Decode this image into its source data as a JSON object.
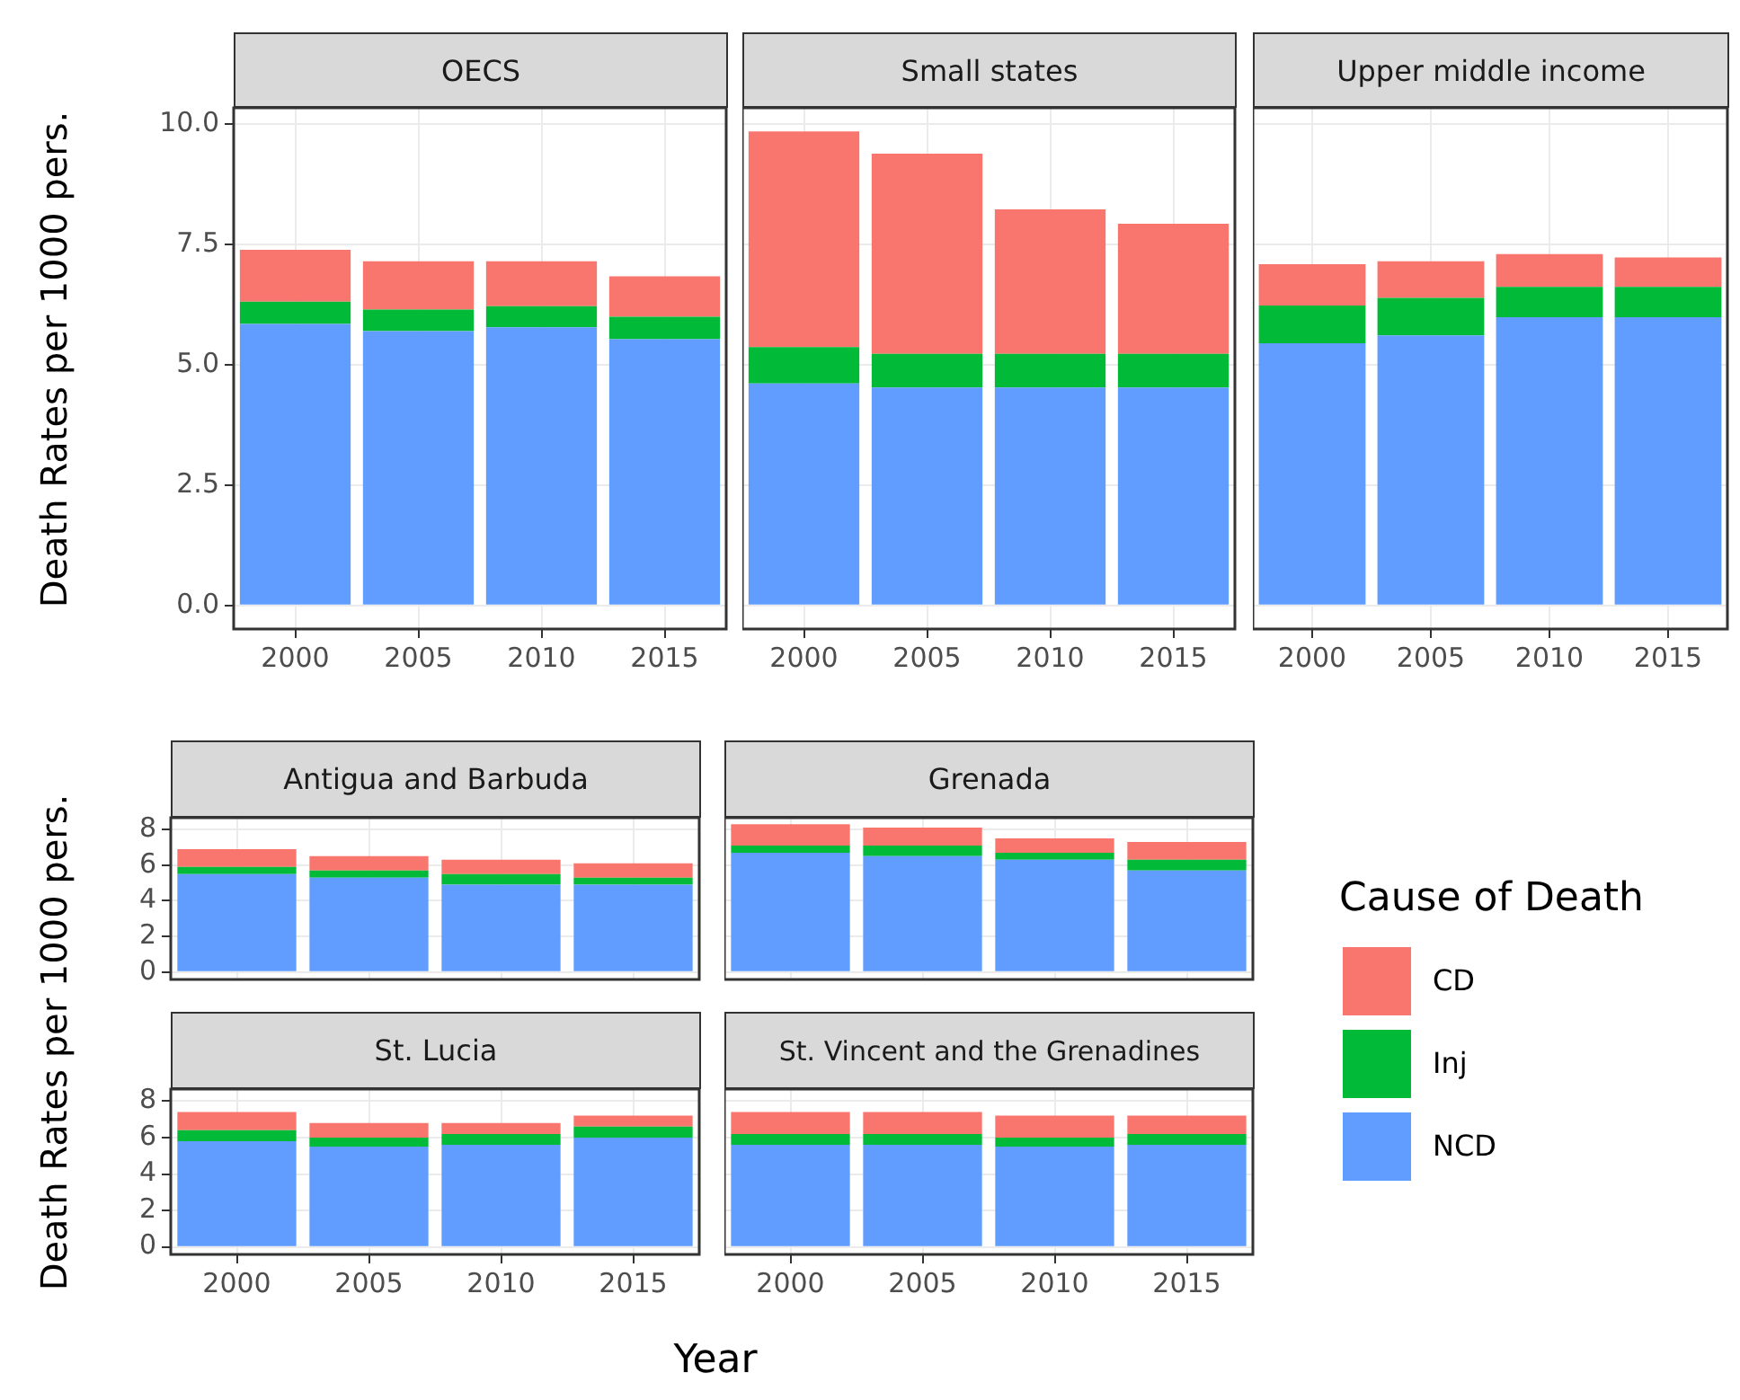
{
  "chart_data": [
    {
      "type": "bar",
      "title": "OECS",
      "ylabel": "Death Rates per 1000 pers.",
      "categories": [
        "2000",
        "2005",
        "2010",
        "2015"
      ],
      "stacked": true,
      "grid": true,
      "ylim": [
        -0.49,
        10.34
      ],
      "yticks": [
        {
          "value": 0,
          "label": "0.0"
        },
        2.5,
        {
          "value": 5,
          "label": "5.0"
        },
        7.5,
        {
          "value": 10,
          "label": "10.0"
        }
      ],
      "series": [
        {
          "color": "#619cff",
          "values": [
            5.85,
            5.7,
            5.78,
            5.53
          ]
        },
        {
          "color": "#00ba38",
          "values": [
            0.46,
            0.45,
            0.44,
            0.47
          ]
        },
        {
          "color": "#f8766d",
          "values": [
            1.08,
            1.0,
            0.93,
            0.84
          ]
        }
      ]
    },
    {
      "type": "bar",
      "title": "Small states",
      "categories": [
        "2000",
        "2005",
        "2010",
        "2015"
      ],
      "stacked": true,
      "grid": true,
      "tick_labels": "x",
      "ylim": [
        -0.49,
        10.34
      ],
      "yticks": [
        0,
        2.5,
        5,
        7.5,
        10
      ],
      "series": [
        {
          "color": "#619cff",
          "values": [
            4.61,
            4.53,
            4.53,
            4.53
          ]
        },
        {
          "color": "#00ba38",
          "values": [
            0.76,
            0.7,
            0.7,
            0.7
          ]
        },
        {
          "color": "#f8766d",
          "values": [
            4.48,
            4.16,
            3.0,
            2.7
          ]
        }
      ]
    },
    {
      "type": "bar",
      "title": "Upper middle income",
      "categories": [
        "2000",
        "2005",
        "2010",
        "2015"
      ],
      "stacked": true,
      "grid": true,
      "tick_labels": "x",
      "ylim": [
        -0.49,
        10.34
      ],
      "yticks": [
        0,
        2.5,
        5,
        7.5,
        10
      ],
      "series": [
        {
          "color": "#619cff",
          "values": [
            5.45,
            5.61,
            5.99,
            5.99
          ]
        },
        {
          "color": "#00ba38",
          "values": [
            0.78,
            0.78,
            0.63,
            0.63
          ]
        },
        {
          "color": "#f8766d",
          "values": [
            0.86,
            0.76,
            0.68,
            0.61
          ]
        }
      ]
    },
    {
      "type": "bar",
      "title": "Antigua and Barbuda",
      "ylabel": "Death Rates per 1000 pers.",
      "categories": [
        "2000",
        "2005",
        "2010",
        "2015"
      ],
      "stacked": true,
      "grid": true,
      "tick_labels": "y",
      "ylim": [
        -0.41,
        8.66
      ],
      "yticks": [
        0,
        2,
        4,
        6,
        8
      ],
      "series": [
        {
          "color": "#619cff",
          "values": [
            5.5,
            5.3,
            4.9,
            4.9
          ]
        },
        {
          "color": "#00ba38",
          "values": [
            0.4,
            0.4,
            0.6,
            0.4
          ]
        },
        {
          "color": "#f8766d",
          "values": [
            1.0,
            0.8,
            0.8,
            0.8
          ]
        }
      ]
    },
    {
      "type": "bar",
      "title": "Grenada",
      "legend": "right",
      "legend_title": "Cause of Death",
      "categories": [
        "2000",
        "2005",
        "2010",
        "2015"
      ],
      "stacked": true,
      "grid": true,
      "tick_labels": false,
      "ylim": [
        -0.41,
        8.66
      ],
      "yticks": [
        0,
        2,
        4,
        6,
        8
      ],
      "series": [
        {
          "name": "NCD",
          "color": "#619cff",
          "values": [
            6.7,
            6.5,
            6.3,
            5.7
          ]
        },
        {
          "name": "Inj",
          "color": "#00ba38",
          "values": [
            0.4,
            0.6,
            0.4,
            0.6
          ]
        },
        {
          "name": "CD",
          "color": "#f8766d",
          "values": [
            1.2,
            1.0,
            0.8,
            1.0
          ]
        }
      ]
    },
    {
      "type": "bar",
      "title": "St. Lucia",
      "xlabel": "Year",
      "categories": [
        "2000",
        "2005",
        "2010",
        "2015"
      ],
      "stacked": true,
      "grid": true,
      "ylim": [
        -0.41,
        8.66
      ],
      "yticks": [
        0,
        2,
        4,
        6,
        8
      ],
      "series": [
        {
          "color": "#619cff",
          "values": [
            5.8,
            5.5,
            5.6,
            6.0
          ]
        },
        {
          "color": "#00ba38",
          "values": [
            0.6,
            0.5,
            0.6,
            0.6
          ]
        },
        {
          "color": "#f8766d",
          "values": [
            1.0,
            0.8,
            0.6,
            0.6
          ]
        }
      ]
    },
    {
      "type": "bar",
      "title": "St. Vincent and the Grenadines",
      "categories": [
        "2000",
        "2005",
        "2010",
        "2015"
      ],
      "stacked": true,
      "grid": true,
      "tick_labels": "x",
      "ylim": [
        -0.41,
        8.66
      ],
      "yticks": [
        0,
        2,
        4,
        6,
        8
      ],
      "series": [
        {
          "color": "#619cff",
          "values": [
            5.6,
            5.6,
            5.5,
            5.6
          ]
        },
        {
          "color": "#00ba38",
          "values": [
            0.6,
            0.6,
            0.5,
            0.6
          ]
        },
        {
          "color": "#f8766d",
          "values": [
            1.2,
            1.2,
            1.2,
            1.0
          ]
        }
      ]
    }
  ]
}
